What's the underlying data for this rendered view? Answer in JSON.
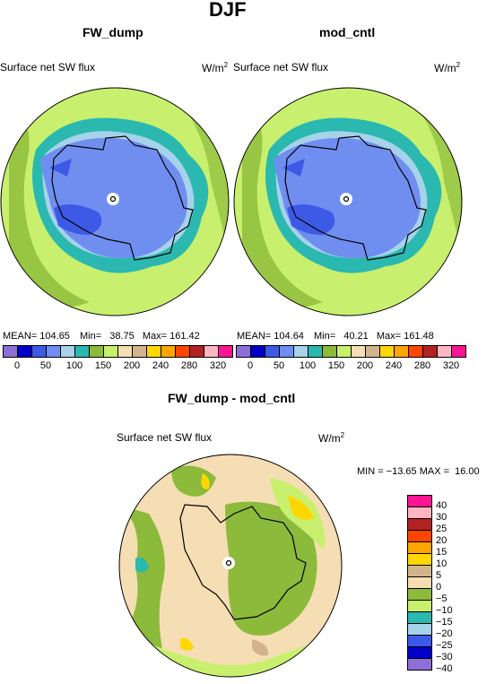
{
  "figure": {
    "title": "DJF"
  },
  "panels": [
    {
      "name": "FW_dump",
      "variable": "Surface net SW flux",
      "units": "W/m",
      "units_exp": "2",
      "stats": {
        "mean_label": "MEAN=",
        "mean": "104.65",
        "min_label": "Min=",
        "min": "38.75",
        "max_label": "Max=",
        "max": "161.42"
      }
    },
    {
      "name": "mod_cntl",
      "variable": "Surface net SW flux",
      "units": "W/m",
      "units_exp": "2",
      "stats": {
        "mean_label": "MEAN=",
        "mean": "104.64",
        "min_label": "Min=",
        "min": "40.21",
        "max_label": "Max=",
        "max": "161.48"
      }
    }
  ],
  "colorbar": {
    "colors": [
      "#8e6fd8",
      "#0000c8",
      "#3c5ae6",
      "#6f8ef0",
      "#a6d2ea",
      "#2ab8b0",
      "#8cba3a",
      "#c8f06e",
      "#f5deb3",
      "#d2b48c",
      "#ffd700",
      "#ffa500",
      "#ff4500",
      "#b22222",
      "#ffb6c1",
      "#ff1493"
    ],
    "labels": [
      "0",
      "50",
      "100",
      "150",
      "200",
      "240",
      "280",
      "320"
    ]
  },
  "diff_panel": {
    "name": "FW_dump - mod_cntl",
    "variable": "Surface net SW flux",
    "units": "W/m",
    "units_exp": "2",
    "stats": "MIN = −13.65 MAX =  16.00"
  },
  "diff_colorbar": {
    "colors": [
      "#ff1493",
      "#ffb6c1",
      "#b22222",
      "#ff4500",
      "#ffa500",
      "#ffd700",
      "#d2b48c",
      "#f5deb3",
      "#8cba3a",
      "#c8f06e",
      "#2ab8b0",
      "#a6d2ea",
      "#3c5ae6",
      "#0000c8",
      "#8e6fd8"
    ],
    "labels": [
      "40",
      "30",
      "25",
      "20",
      "15",
      "10",
      "5",
      "0",
      "−5",
      "−10",
      "−15",
      "−20",
      "−25",
      "−30",
      "−40"
    ]
  },
  "map_colors": {
    "ocean_green": "#c8f06e",
    "dark_green": "#8cba3a",
    "teal": "#2ab8b0",
    "light_blue": "#a6d2ea",
    "mid_blue": "#6f8ef0",
    "blue": "#3c5ae6",
    "tan": "#f5deb3",
    "brown": "#d2b48c",
    "yellow": "#ffd700"
  }
}
